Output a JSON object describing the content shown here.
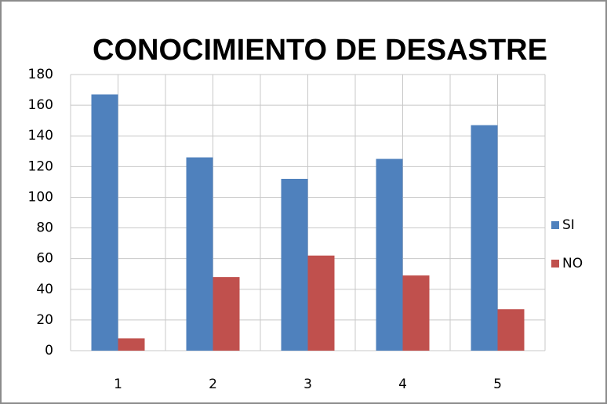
{
  "chart_data": {
    "type": "bar",
    "title": "CONOCIMIENTO DE DESASTRE",
    "categories": [
      "1",
      "2",
      "3",
      "4",
      "5"
    ],
    "series": [
      {
        "name": "SI",
        "color": "#4f81bd",
        "values": [
          167,
          126,
          112,
          125,
          147
        ]
      },
      {
        "name": "NO",
        "color": "#c0504d",
        "values": [
          8,
          48,
          62,
          49,
          27
        ]
      }
    ],
    "ylim": [
      0,
      180
    ],
    "yticks": [
      0,
      20,
      40,
      60,
      80,
      100,
      120,
      140,
      160,
      180
    ],
    "grid": true,
    "legend": "right"
  }
}
